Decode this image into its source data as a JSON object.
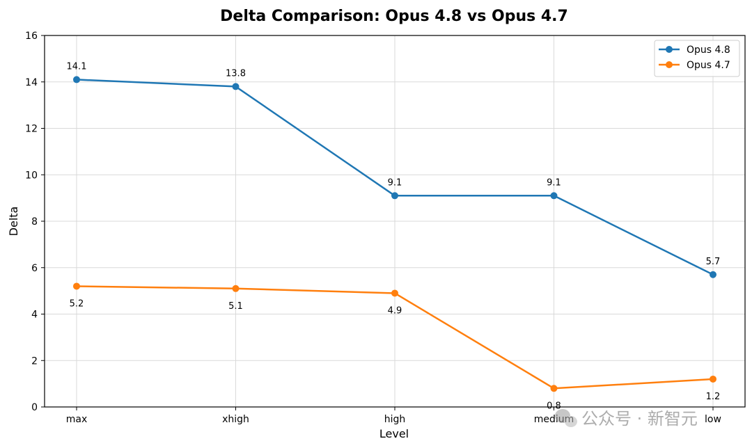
{
  "chart_data": {
    "type": "line",
    "title": "Delta Comparison: Opus 4.8 vs Opus 4.7",
    "xlabel": "Level",
    "ylabel": "Delta",
    "categories": [
      "max",
      "xhigh",
      "high",
      "medium",
      "low"
    ],
    "ylim": [
      0,
      16
    ],
    "yticks": [
      0,
      2,
      4,
      6,
      8,
      10,
      12,
      14,
      16
    ],
    "grid": true,
    "legend_position": "top-right",
    "series": [
      {
        "name": "Opus 4.8",
        "color": "#1f77b4",
        "values": [
          14.1,
          13.8,
          9.1,
          9.1,
          5.7
        ],
        "label_position": "above"
      },
      {
        "name": "Opus 4.7",
        "color": "#ff7f0e",
        "values": [
          5.2,
          5.1,
          4.9,
          0.8,
          1.2
        ],
        "label_position": "below"
      }
    ]
  },
  "watermark": {
    "text": "公众号 · 新智元",
    "icon": "wechat-icon"
  }
}
